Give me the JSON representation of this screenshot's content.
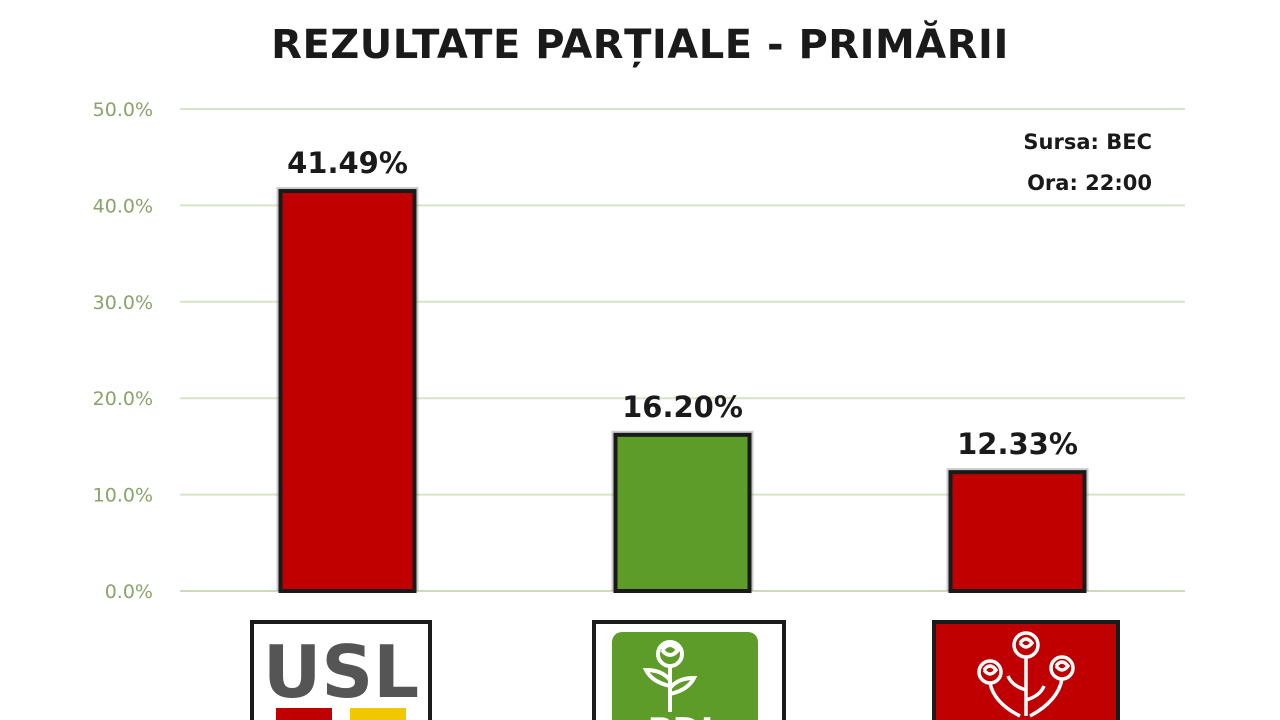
{
  "chart_data": {
    "type": "bar",
    "title": "REZULTATE PARȚIALE - PRIMĂRII",
    "categories": [
      "USL",
      "PDL",
      "PSD"
    ],
    "values": [
      41.49,
      16.2,
      12.33
    ],
    "value_labels": [
      "41.49%",
      "16.20%",
      "12.33%"
    ],
    "bar_colors": [
      "#c00000",
      "#5e9c2a",
      "#c00000"
    ],
    "ylim": [
      0,
      50
    ],
    "yticks": [
      0,
      10,
      20,
      30,
      40,
      50
    ],
    "ytick_labels": [
      "0.0%",
      "10.0%",
      "20.0%",
      "30.0%",
      "40.0%",
      "50.0%"
    ],
    "grid": true,
    "legend": "none",
    "annotations": [
      "Sursa: BEC",
      "Ora: 22:00"
    ]
  },
  "logos": [
    {
      "name": "usl-logo",
      "text": "USL",
      "colors": [
        "#555555",
        "#c00000",
        "#f0c800"
      ]
    },
    {
      "name": "pdl-logo",
      "text": "PDL",
      "colors": [
        "#5e9c2a",
        "#ffffff"
      ]
    },
    {
      "name": "psd-logo",
      "text": "",
      "colors": [
        "#c00000",
        "#ffffff"
      ]
    }
  ],
  "colors": {
    "grid": "#d8e4c8",
    "tick": "#8aa36b",
    "bar_edge": "#1a1a1a"
  }
}
